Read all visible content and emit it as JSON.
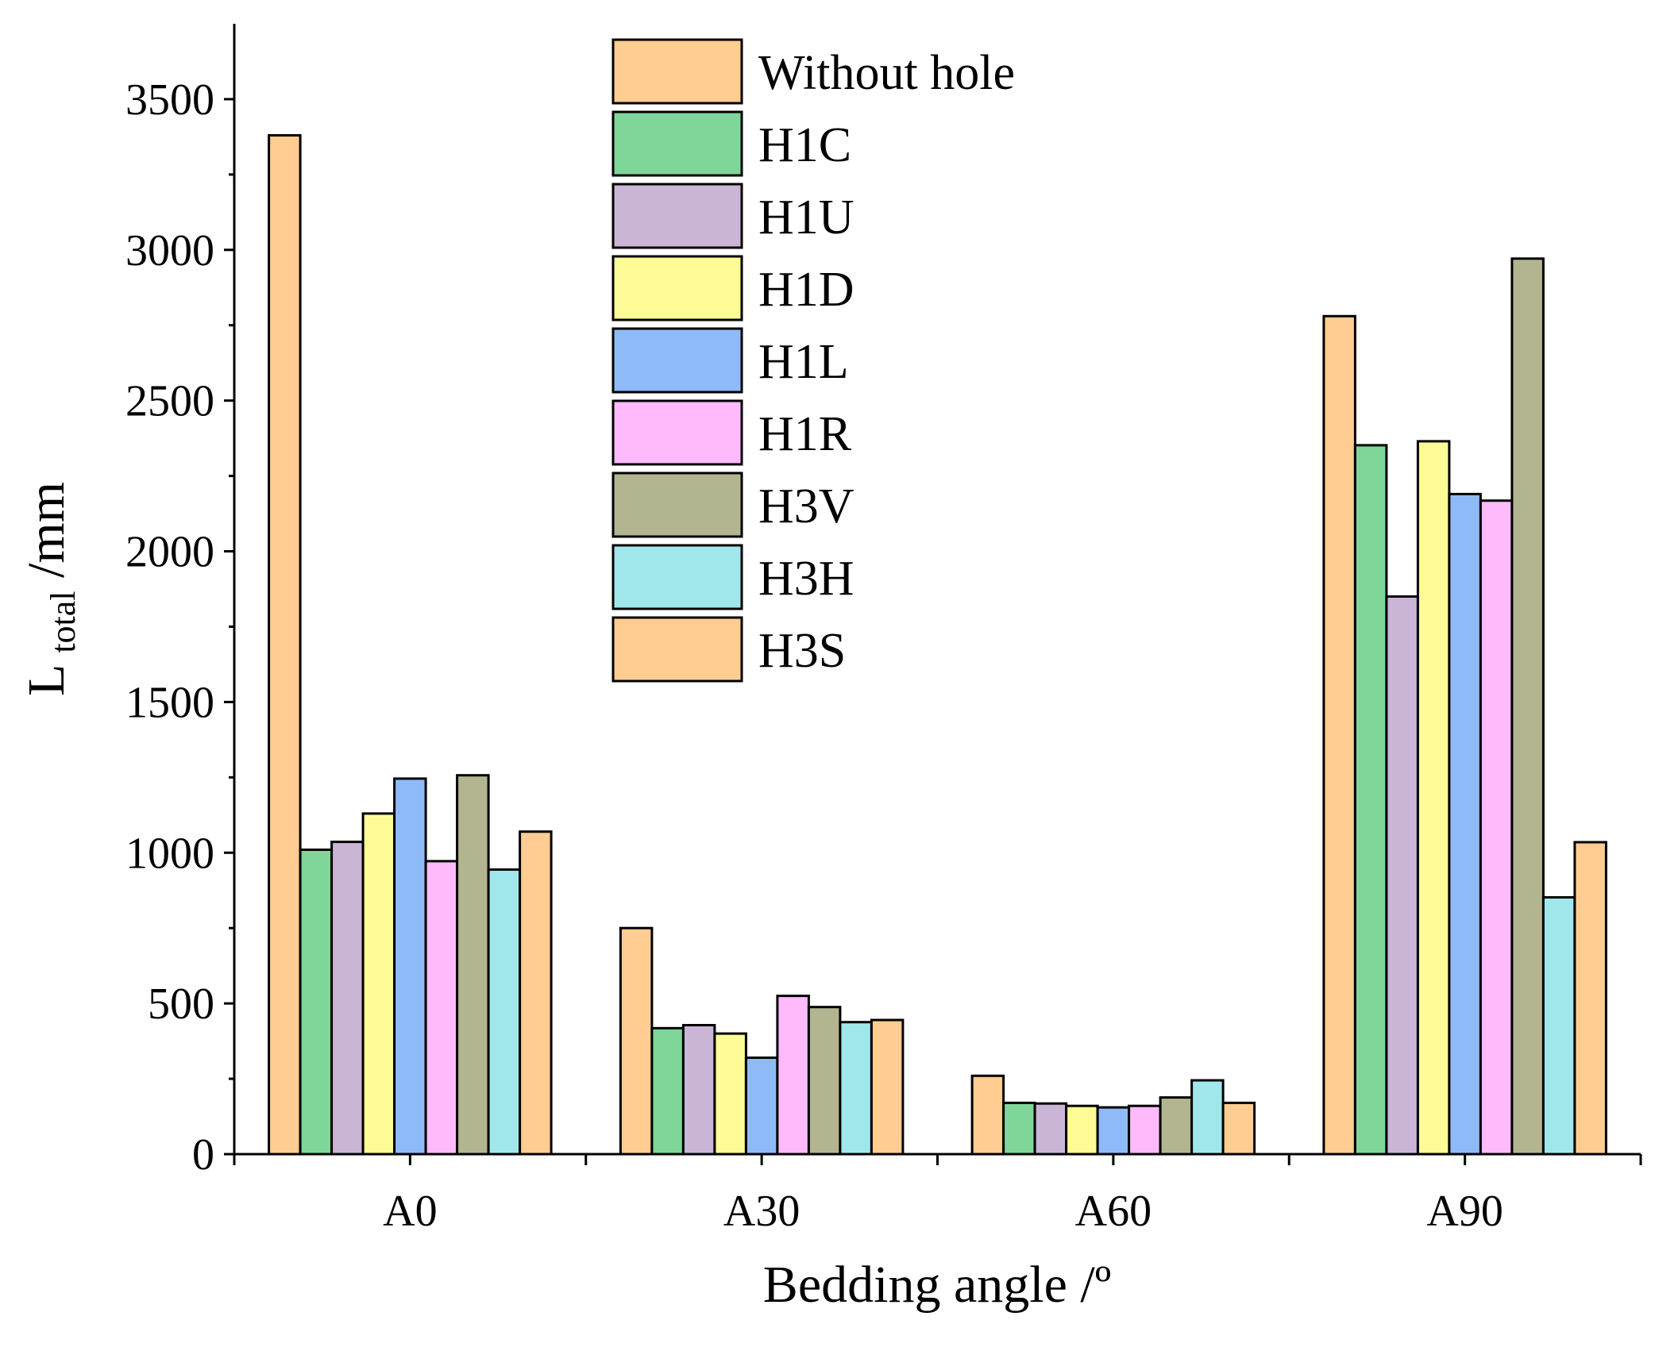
{
  "chart_data": {
    "type": "bar",
    "title": "",
    "xlabel": "Bedding angle /º",
    "ylabel": {
      "main": "L",
      "subscript": "total",
      "unit": " /mm"
    },
    "categories": [
      "A0",
      "A30",
      "A60",
      "A90"
    ],
    "ylim": [
      0,
      3750
    ],
    "yticks": [
      0,
      500,
      1000,
      1500,
      2000,
      2500,
      3000,
      3500
    ],
    "ytick_labels": [
      "0",
      "500",
      "1000",
      "1500",
      "2000",
      "2500",
      "3000",
      "3500"
    ],
    "grid": false,
    "legend_position": "top-center",
    "series": [
      {
        "name": "Without hole",
        "color": "#FFCC91",
        "values": [
          3380,
          750,
          260,
          2780
        ]
      },
      {
        "name": "H1C",
        "color": "#7ED699",
        "values": [
          1010,
          418,
          170,
          2352
        ]
      },
      {
        "name": "H1U",
        "color": "#CBB5D7",
        "values": [
          1036,
          428,
          168,
          1850
        ]
      },
      {
        "name": "H1D",
        "color": "#FDFB96",
        "values": [
          1130,
          400,
          160,
          2365
        ]
      },
      {
        "name": "H1L",
        "color": "#8EBAF7",
        "values": [
          1246,
          320,
          155,
          2190
        ]
      },
      {
        "name": "H1R",
        "color": "#FEBAFB",
        "values": [
          972,
          525,
          160,
          2168
        ]
      },
      {
        "name": "H3V",
        "color": "#B3B591",
        "values": [
          1257,
          488,
          188,
          2971
        ]
      },
      {
        "name": "H3H",
        "color": "#A0E7EB",
        "values": [
          944,
          438,
          245,
          852
        ]
      },
      {
        "name": "H3S",
        "color": "#FFCC91",
        "values": [
          1070,
          445,
          170,
          1035
        ]
      }
    ]
  }
}
